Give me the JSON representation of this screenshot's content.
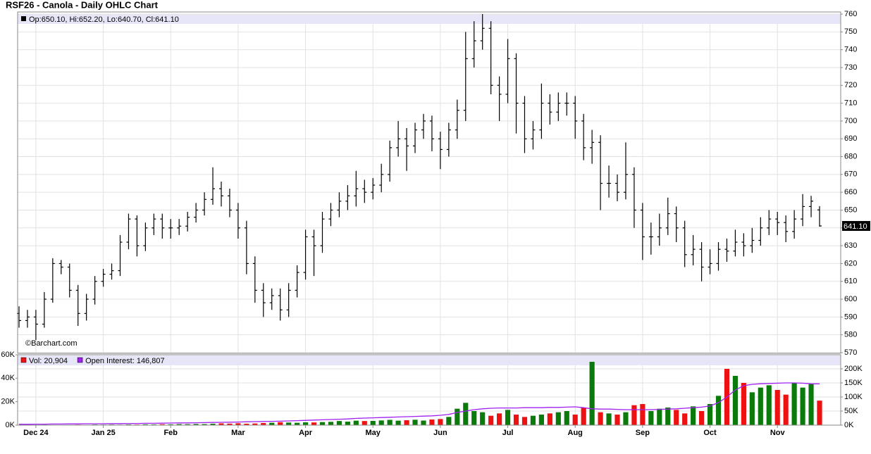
{
  "chart_data": [
    {
      "type": "ohlc",
      "title": "RSF26 - Canola - Daily OHLC Chart",
      "info": "Op:650.10, Hi:652.20, Lo:640.70, Cl:641.10",
      "watermark": "©Barchart.com",
      "last_label": "641.10",
      "color": "#000000",
      "grid": true,
      "ylim": [
        570,
        760
      ],
      "yticks": [
        570,
        580,
        590,
        600,
        610,
        620,
        630,
        640,
        650,
        660,
        670,
        680,
        690,
        700,
        710,
        720,
        730,
        740,
        750,
        760
      ],
      "open": [
        592,
        588,
        590,
        586,
        600,
        620,
        618,
        605,
        592,
        600,
        610,
        614,
        616,
        632,
        645,
        630,
        640,
        645,
        640,
        640,
        641,
        646,
        650,
        656,
        662,
        658,
        650,
        640,
        620,
        605,
        598,
        602,
        594,
        605,
        615,
        635,
        630,
        645,
        650,
        655,
        658,
        662,
        660,
        664,
        670,
        685,
        690,
        686,
        695,
        700,
        690,
        684,
        695,
        706,
        735,
        745,
        752,
        720,
        715,
        735,
        710,
        690,
        695,
        710,
        705,
        710,
        710,
        700,
        685,
        688,
        665,
        665,
        660,
        670,
        650,
        635,
        635,
        640,
        648,
        640,
        625,
        628,
        618,
        620,
        628,
        627,
        632,
        630,
        633,
        640,
        645,
        643,
        638,
        645,
        652,
        650.1
      ],
      "high": [
        596,
        594,
        594,
        604,
        623,
        622,
        620,
        608,
        603,
        613,
        617,
        620,
        636,
        648,
        647,
        643,
        648,
        648,
        645,
        645,
        649,
        654,
        660,
        674,
        666,
        662,
        654,
        644,
        624,
        609,
        606,
        606,
        609,
        619,
        639,
        639,
        649,
        654,
        660,
        664,
        672,
        667,
        668,
        676,
        689,
        700,
        696,
        699,
        704,
        703,
        694,
        699,
        712,
        750,
        756,
        760,
        756,
        725,
        746,
        738,
        714,
        700,
        721,
        715,
        716,
        716,
        714,
        704,
        695,
        692,
        675,
        670,
        688,
        674,
        654,
        643,
        648,
        657,
        652,
        644,
        636,
        632,
        628,
        632,
        634,
        639,
        637,
        640,
        646,
        650,
        649,
        647,
        650,
        659,
        658,
        652.2
      ],
      "low": [
        584,
        584,
        577,
        584,
        598,
        614,
        601,
        585,
        588,
        597,
        607,
        611,
        613,
        628,
        624,
        627,
        636,
        634,
        634,
        636,
        638,
        643,
        647,
        653,
        652,
        646,
        634,
        614,
        598,
        590,
        594,
        588,
        590,
        601,
        611,
        613,
        626,
        641,
        646,
        650,
        652,
        654,
        656,
        660,
        666,
        680,
        672,
        682,
        690,
        683,
        673,
        680,
        690,
        700,
        730,
        740,
        715,
        700,
        710,
        693,
        682,
        684,
        690,
        698,
        700,
        703,
        690,
        678,
        676,
        650,
        657,
        655,
        656,
        640,
        622,
        625,
        630,
        636,
        632,
        618,
        619,
        610,
        614,
        616,
        621,
        624,
        624,
        626,
        630,
        636,
        636,
        632,
        634,
        641,
        646,
        640.7
      ],
      "close": [
        588,
        590,
        586,
        600,
        620,
        618,
        605,
        592,
        600,
        610,
        614,
        616,
        632,
        645,
        630,
        640,
        645,
        640,
        640,
        641,
        646,
        650,
        656,
        662,
        658,
        650,
        640,
        620,
        605,
        598,
        602,
        594,
        605,
        615,
        635,
        630,
        645,
        650,
        655,
        658,
        662,
        660,
        664,
        670,
        685,
        690,
        686,
        695,
        700,
        690,
        684,
        695,
        706,
        735,
        745,
        752,
        720,
        715,
        735,
        710,
        690,
        695,
        710,
        705,
        710,
        710,
        700,
        685,
        688,
        665,
        665,
        660,
        670,
        650,
        635,
        635,
        640,
        648,
        640,
        625,
        628,
        618,
        620,
        628,
        627,
        632,
        630,
        633,
        640,
        645,
        643,
        638,
        645,
        652,
        655,
        641.1
      ]
    },
    {
      "type": "bar",
      "grid": true,
      "categories": [
        null,
        null,
        "Dec 24",
        null,
        null,
        null,
        null,
        null,
        null,
        null,
        "Jan 25",
        null,
        null,
        null,
        null,
        null,
        null,
        null,
        "Feb",
        null,
        null,
        null,
        null,
        null,
        null,
        null,
        "Mar",
        null,
        null,
        null,
        null,
        null,
        null,
        null,
        "Apr",
        null,
        null,
        null,
        null,
        null,
        null,
        null,
        "May",
        null,
        null,
        null,
        null,
        null,
        null,
        null,
        "Jun",
        null,
        null,
        null,
        null,
        null,
        null,
        null,
        "Jul",
        null,
        null,
        null,
        null,
        null,
        null,
        null,
        "Aug",
        null,
        null,
        null,
        null,
        null,
        null,
        null,
        "Sep",
        null,
        null,
        null,
        null,
        null,
        null,
        null,
        "Oct",
        null,
        null,
        null,
        null,
        null,
        null,
        null,
        "Nov",
        null,
        null,
        null,
        null,
        null
      ],
      "ylim": [
        0,
        60000
      ],
      "yticks": [
        {
          "value": 0,
          "label": "0K"
        },
        {
          "value": 20000,
          "label": "20K"
        },
        {
          "value": 40000,
          "label": "40K"
        },
        {
          "value": 60000,
          "label": "60K"
        }
      ],
      "y2lim": [
        0,
        250000
      ],
      "y2ticks": [
        {
          "value": 0,
          "label": "0K"
        },
        {
          "value": 50000,
          "label": "50K"
        },
        {
          "value": 100000,
          "label": "100K"
        },
        {
          "value": 150000,
          "label": "150K"
        },
        {
          "value": 200000,
          "label": "200K"
        }
      ],
      "series": [
        {
          "name": "Vol: 20,904",
          "type": "bar",
          "up_color": "#0a7a0a",
          "down_color": "#ee1111",
          "values": [
            200,
            300,
            200,
            400,
            300,
            200,
            300,
            400,
            300,
            500,
            400,
            500,
            400,
            600,
            500,
            700,
            600,
            800,
            700,
            900,
            800,
            1000,
            900,
            1200,
            1500,
            1300,
            1600,
            1200,
            1400,
            1800,
            2000,
            2500,
            2200,
            2000,
            2400,
            2300,
            2600,
            2800,
            3500,
            3000,
            3800,
            3500,
            3600,
            4000,
            4500,
            3800,
            4200,
            4600,
            3900,
            4800,
            5200,
            7000,
            14000,
            19000,
            12000,
            11000,
            8000,
            10000,
            13000,
            9000,
            7000,
            8000,
            9000,
            10000,
            11000,
            12000,
            9000,
            15000,
            54000,
            11000,
            10000,
            9000,
            11000,
            17000,
            18000,
            12000,
            14000,
            15000,
            13000,
            10000,
            16000,
            12000,
            18000,
            25000,
            48000,
            42000,
            36000,
            28000,
            32000,
            34000,
            30000,
            26000,
            36000,
            32000,
            35000,
            20904
          ]
        },
        {
          "name": "Open Interest: 146,807",
          "type": "line",
          "axis": "y2",
          "color": "#a020f0",
          "values": [
            3000,
            3000,
            3500,
            3500,
            4000,
            4000,
            4500,
            4500,
            5000,
            5000,
            5000,
            5500,
            5500,
            6000,
            6000,
            6500,
            6500,
            7000,
            7500,
            8000,
            8000,
            8500,
            9000,
            9500,
            10000,
            10500,
            11000,
            12000,
            12500,
            13000,
            13500,
            14000,
            15000,
            16000,
            17000,
            18000,
            19000,
            20000,
            21000,
            22000,
            24000,
            25000,
            26000,
            27000,
            28000,
            29000,
            30000,
            31000,
            32000,
            33000,
            35000,
            38000,
            45000,
            50000,
            55000,
            58000,
            60000,
            61000,
            61000,
            61000,
            62000,
            62000,
            62000,
            63000,
            63000,
            64000,
            65000,
            62000,
            58000,
            57000,
            57000,
            56000,
            55000,
            55000,
            55000,
            55000,
            56000,
            57000,
            58000,
            60000,
            62000,
            64000,
            68000,
            80000,
            100000,
            125000,
            140000,
            145000,
            147000,
            148000,
            149000,
            150000,
            150000,
            149000,
            147000,
            146807
          ]
        }
      ]
    }
  ]
}
